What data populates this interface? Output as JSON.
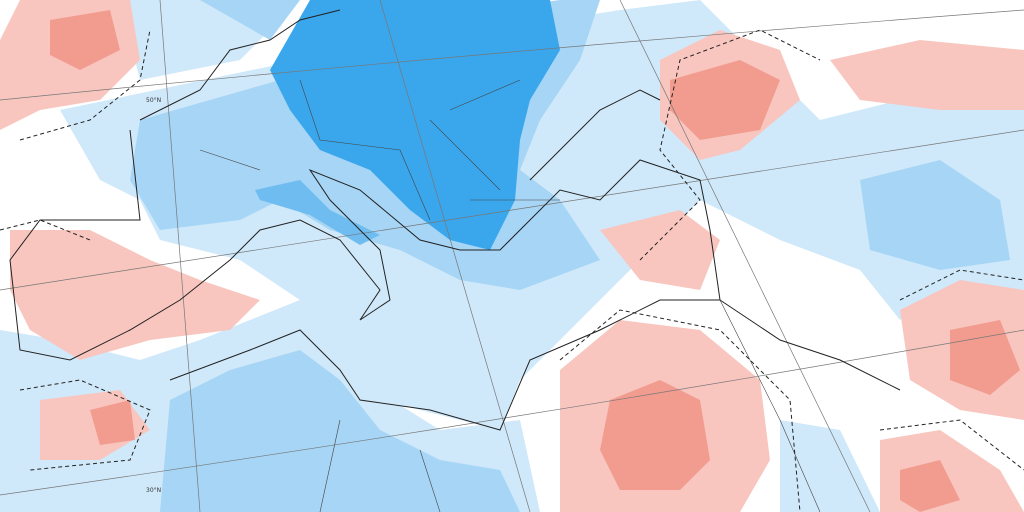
{
  "graticule_labels": [
    "50°N",
    "30°N"
  ]
}
